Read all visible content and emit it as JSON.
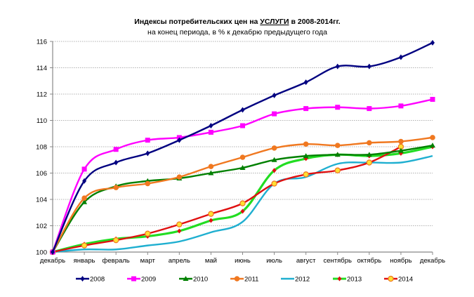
{
  "chart_data": {
    "type": "line",
    "title_prefix": "Индексы потребительских цен на ",
    "title_emph": "УСЛУГИ",
    "title_suffix": " в 2008-2014гг.",
    "subtitle": "на конец периода, в % к декабрю предыдущего года",
    "xlabel": "",
    "ylabel": "",
    "categories": [
      "декабрь",
      "январь",
      "февраль",
      "март",
      "апрель",
      "май",
      "июнь",
      "июль",
      "август",
      "сентябрь",
      "октябрь",
      "ноябрь",
      "декабрь"
    ],
    "ylim": [
      100,
      116
    ],
    "yticks": [
      100,
      102,
      104,
      106,
      108,
      110,
      112,
      114,
      116
    ],
    "grid": true,
    "legend_position": "bottom",
    "series": [
      {
        "name": "2008",
        "color": "#000080",
        "marker": "diamond",
        "values": [
          100,
          105.4,
          106.8,
          107.5,
          108.5,
          109.6,
          110.8,
          111.9,
          112.9,
          114.1,
          114.1,
          114.8,
          115.9
        ]
      },
      {
        "name": "2009",
        "color": "#FF00FF",
        "marker": "square",
        "values": [
          100,
          106.3,
          107.8,
          108.5,
          108.7,
          109.1,
          109.6,
          110.5,
          110.9,
          111.0,
          110.9,
          111.1,
          111.6
        ]
      },
      {
        "name": "2010",
        "color": "#008000",
        "marker": "triangle",
        "values": [
          100,
          103.8,
          105.0,
          105.4,
          105.6,
          106.0,
          106.4,
          107.0,
          107.3,
          107.4,
          107.4,
          107.7,
          108.1
        ]
      },
      {
        "name": "2011",
        "color": "#F07820",
        "marker": "circle",
        "values": [
          100,
          104.1,
          104.9,
          105.2,
          105.7,
          106.5,
          107.2,
          107.9,
          108.2,
          108.1,
          108.3,
          108.4,
          108.7
        ]
      },
      {
        "name": "2012",
        "color": "#1FAFD0",
        "marker": "none",
        "values": [
          100,
          100.2,
          100.2,
          100.5,
          100.8,
          101.5,
          102.3,
          105.2,
          105.7,
          106.7,
          106.8,
          106.8,
          107.3
        ]
      },
      {
        "name": "2013",
        "color": "#22DD22",
        "marker": "small-diamond-red",
        "values": [
          100,
          100.6,
          101.0,
          101.2,
          101.6,
          102.4,
          103.1,
          106.2,
          107.1,
          107.4,
          107.3,
          107.5,
          108.0
        ]
      },
      {
        "name": "2014",
        "color": "#E01010",
        "marker": "yellow-circle",
        "values": [
          100,
          100.5,
          100.9,
          101.4,
          102.1,
          102.9,
          103.7,
          105.2,
          105.9,
          106.2,
          106.8,
          108.0,
          null
        ]
      }
    ]
  }
}
